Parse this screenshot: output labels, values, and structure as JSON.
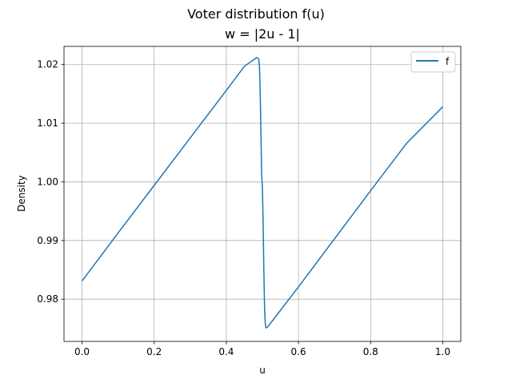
{
  "chart_data": {
    "type": "line",
    "title": "Voter distribution f(u)",
    "subtitle": "w = |2u - 1|",
    "xlabel": "u",
    "ylabel": "Density",
    "xlim": [
      -0.05,
      1.05
    ],
    "ylim": [
      0.9728,
      1.0231
    ],
    "x_ticks": [
      0.0,
      0.2,
      0.4,
      0.6,
      0.8,
      1.0
    ],
    "x_tick_labels": [
      "0.0",
      "0.2",
      "0.4",
      "0.6",
      "0.8",
      "1.0"
    ],
    "y_ticks": [
      0.98,
      0.99,
      1.0,
      1.01,
      1.02
    ],
    "y_tick_labels": [
      "0.98",
      "0.99",
      "1.00",
      "1.01",
      "1.02"
    ],
    "grid": true,
    "legend_position": "top-right",
    "series": [
      {
        "name": "f",
        "color": "#1f77b4",
        "x": [
          0.0,
          0.1,
          0.2,
          0.3,
          0.4,
          0.45,
          0.48,
          0.485,
          0.49,
          0.492,
          0.494,
          0.496,
          0.498,
          0.5,
          0.502,
          0.504,
          0.506,
          0.508,
          0.51,
          0.515,
          0.52,
          0.55,
          0.6,
          0.7,
          0.8,
          0.9,
          1.0
        ],
        "y": [
          0.9831,
          0.9913,
          0.9994,
          1.0075,
          1.0156,
          1.0197,
          1.021,
          1.0212,
          1.0209,
          1.0195,
          1.015,
          1.008,
          1.001,
          0.999,
          0.993,
          0.985,
          0.9785,
          0.9758,
          0.9751,
          0.9753,
          0.9757,
          0.9781,
          0.9821,
          0.9903,
          0.9985,
          1.0066,
          1.0128
        ]
      }
    ]
  }
}
